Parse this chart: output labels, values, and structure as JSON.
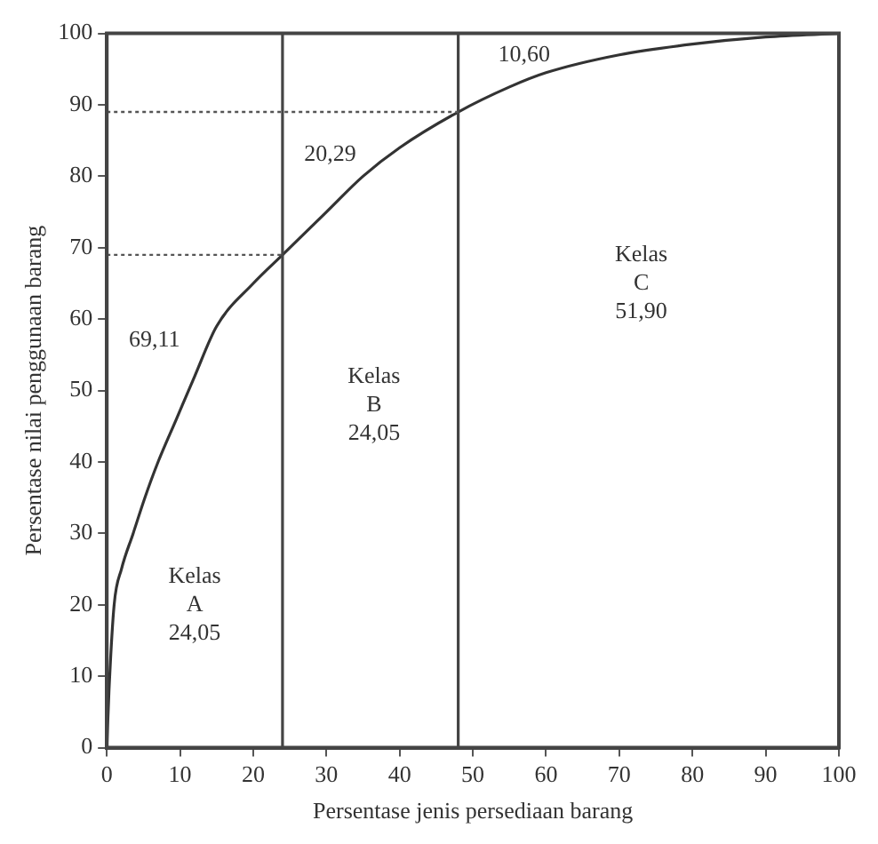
{
  "chart_data": {
    "type": "line",
    "xlabel": "Persentase jenis persediaan barang",
    "ylabel": "Persentase nilai penggunaan barang",
    "xlim": [
      0,
      100
    ],
    "ylim": [
      0,
      100
    ],
    "xticks": [
      0,
      10,
      20,
      30,
      40,
      50,
      60,
      70,
      80,
      90,
      100
    ],
    "yticks": [
      0,
      10,
      20,
      30,
      40,
      50,
      60,
      70,
      80,
      90,
      100
    ],
    "grid": false,
    "legend": false,
    "marker": "none",
    "line_style": "solid",
    "series": [
      {
        "color": "#333333",
        "x": [
          0,
          0.3,
          1,
          2,
          3.6,
          5.2,
          7,
          9.5,
          12,
          15,
          20,
          24,
          30,
          35,
          40,
          48,
          55,
          60,
          70,
          80,
          90,
          100
        ],
        "values": [
          0,
          8,
          20,
          25,
          30,
          35,
          40,
          46,
          52,
          59,
          65,
          69,
          75,
          80,
          84,
          89,
          92.5,
          94.5,
          97,
          98.5,
          99.5,
          100
        ]
      }
    ],
    "ref_lines": [
      {
        "axis": "x",
        "value": 24,
        "color": "#444444",
        "line_style": "solid"
      },
      {
        "axis": "x",
        "value": 48,
        "color": "#444444",
        "line_style": "solid"
      },
      {
        "axis": "y",
        "value": 69,
        "color": "#555555",
        "line_style": "dotted"
      },
      {
        "axis": "y",
        "value": 89,
        "color": "#555555",
        "line_style": "dotted"
      }
    ],
    "annotations": [
      "69,11",
      "20,29",
      "10,60",
      "Kelas\nA\n24,05",
      "Kelas\nB\n24,05",
      "Kelas\nC\n51,90"
    ]
  }
}
